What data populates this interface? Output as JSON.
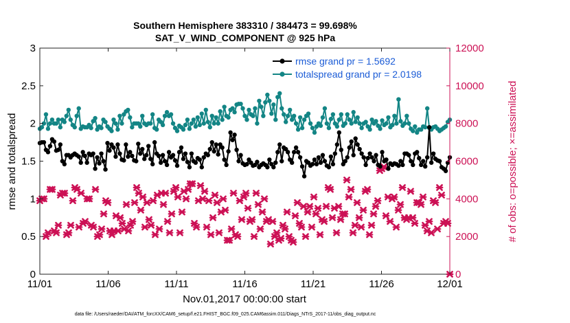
{
  "chart_data": {
    "type": "line",
    "title": "Southern Hemisphere 383310 / 384473 = 99.698%",
    "subtitle": "SAT_V_WIND_COMPONENT @ 925 hPa",
    "xlabel": "Nov.01,2017 00:00:00 start",
    "ylabel_left": "rmse and totalspread",
    "ylabel_right": "# of obs: o=possible; ×=assimilated",
    "xlim": [
      0,
      30
    ],
    "ylim_left": [
      0,
      3
    ],
    "ylim_right": [
      0,
      12000
    ],
    "x_tick_labels": [
      "11/01",
      "11/06",
      "11/11",
      "11/16",
      "11/21",
      "11/26",
      "12/01"
    ],
    "x_tick_values": [
      0,
      5,
      10,
      15,
      20,
      25,
      30
    ],
    "y_left_ticks": [
      0,
      0.5,
      1,
      1.5,
      2,
      2.5,
      3
    ],
    "y_left_tick_labels": [
      "0",
      "0.5",
      "1",
      "1.5",
      "2",
      "2.5",
      "3"
    ],
    "y_right_ticks": [
      0,
      2000,
      4000,
      6000,
      8000,
      10000,
      12000
    ],
    "y_right_tick_labels": [
      "0",
      "2000",
      "4000",
      "6000",
      "8000",
      "10000",
      "12000"
    ],
    "legend": [
      {
        "label": "rmse grand pr = 1.5692",
        "color": "#000000"
      },
      {
        "label": "totalspread grand pr = 2.0198",
        "color": "#138585"
      }
    ],
    "footnote": "data file: /Users/raeder/DAI/ATM_forcXX/CAM6_setup/f.e21.FHIST_BGC.f09_025.CAM6assim.011/Diags_NTrS_2017-11/obs_diag_output.nc",
    "series": [
      {
        "name": "rmse",
        "color": "#000000",
        "axis": "left",
        "values": [
          1.74,
          1.75,
          1.75,
          1.65,
          1.62,
          1.7,
          1.79,
          1.76,
          1.64,
          1.65,
          1.72,
          1.5,
          1.46,
          1.58,
          1.58,
          1.55,
          1.58,
          1.6,
          1.58,
          1.56,
          1.48,
          1.62,
          1.57,
          1.48,
          1.6,
          1.58,
          1.6,
          1.4,
          1.55,
          1.47,
          1.6,
          1.5,
          1.39,
          1.74,
          1.64,
          1.72,
          1.68,
          1.56,
          1.72,
          1.6,
          1.52,
          1.51,
          1.72,
          1.56,
          1.62,
          1.57,
          1.51,
          1.5,
          1.73,
          1.6,
          1.66,
          1.53,
          1.58,
          1.7,
          1.53,
          1.46,
          1.75,
          1.6,
          1.57,
          1.48,
          1.58,
          1.5,
          1.45,
          1.62,
          1.55,
          1.58,
          1.51,
          1.44,
          1.62,
          1.68,
          1.53,
          1.6,
          1.49,
          1.42,
          1.6,
          1.5,
          1.48,
          1.54,
          1.52,
          1.42,
          1.55,
          1.6,
          1.58,
          1.66,
          1.75,
          1.63,
          1.72,
          1.59,
          1.72,
          1.68,
          1.52,
          1.45,
          1.63,
          1.88,
          1.78,
          1.85,
          1.65,
          1.5,
          1.58,
          1.47,
          1.45,
          1.46,
          1.52,
          1.48,
          1.44,
          1.45,
          1.49,
          1.42,
          1.45,
          1.47,
          1.45,
          1.42,
          1.52,
          1.46,
          1.42,
          1.48,
          1.62,
          1.72,
          1.5,
          1.68,
          1.66,
          1.62,
          1.52,
          1.48,
          1.62,
          1.68,
          1.62,
          1.55,
          1.43,
          1.3,
          1.5,
          1.48,
          1.44,
          1.46,
          1.52,
          1.46,
          1.55,
          1.48,
          1.58,
          1.5,
          1.44,
          1.42,
          1.56,
          1.46,
          1.6,
          1.72,
          1.88,
          1.65,
          1.46,
          1.5,
          1.55,
          1.68,
          1.76,
          1.58,
          1.8,
          1.72,
          1.66,
          1.6,
          1.55,
          1.45,
          1.54,
          1.6,
          1.55,
          1.5,
          1.58,
          1.45,
          1.43,
          1.62,
          1.5,
          1.52,
          1.4,
          1.47,
          1.45,
          1.47,
          1.46,
          1.44,
          1.5,
          1.45,
          1.6,
          1.6,
          1.58,
          1.5,
          1.45,
          1.6,
          1.62,
          1.54,
          1.45,
          1.5,
          1.43,
          1.55,
          1.95,
          1.48,
          1.6,
          1.53,
          1.51,
          1.5,
          1.42,
          1.4,
          1.37,
          1.48,
          1.55
        ]
      },
      {
        "name": "totalspread",
        "color": "#138585",
        "axis": "left",
        "values": [
          1.93,
          1.95,
          2.0,
          2.12,
          1.93,
          2.0,
          2.05,
          2.0,
          2.0,
          2.05,
          1.95,
          2.05,
          2.02,
          2.1,
          2.18,
          2.05,
          1.98,
          1.95,
          2.1,
          2.2,
          1.93,
          1.96,
          1.95,
          1.95,
          1.98,
          1.94,
          2.03,
          2.07,
          1.92,
          1.96,
          1.94,
          2.05,
          2.02,
          1.96,
          1.93,
          1.9,
          2.05,
          2.0,
          1.92,
          2.1,
          2.0,
          2.12,
          2.16,
          2.18,
          2.08,
          1.95,
          2.0,
          2.0,
          2.0,
          1.96,
          2.1,
          2.0,
          1.98,
          2.0,
          2.0,
          2.12,
          1.94,
          1.92,
          2.05,
          2.02,
          1.98,
          2.1,
          2.15,
          2.1,
          2.12,
          2.0,
          1.94,
          1.9,
          1.97,
          1.95,
          1.92,
          1.98,
          2.05,
          1.93,
          2.0,
          2.05,
          1.96,
          2.08,
          1.98,
          2.13,
          2.0,
          2.18,
          2.02,
          1.95,
          2.1,
          2.0,
          2.08,
          2.0,
          2.16,
          2.05,
          2.22,
          2.1,
          2.08,
          2.18,
          2.2,
          2.15,
          2.25,
          2.26,
          2.26,
          2.2,
          2.1,
          2.05,
          2.18,
          2.12,
          2.1,
          2.2,
          2.0,
          2.3,
          2.22,
          2.1,
          2.28,
          2.38,
          2.3,
          2.13,
          2.25,
          2.05,
          2.35,
          2.4,
          2.2,
          2.12,
          2.02,
          2.1,
          2.18,
          2.05,
          2.1,
          2.0,
          1.92,
          2.08,
          1.94,
          2.05,
          2.1,
          2.13,
          2.0,
          1.94,
          1.88,
          1.96,
          2.0,
          1.97,
          2.08,
          2.2,
          2.0,
          1.94,
          2.06,
          2.12,
          2.0,
          1.96,
          2.05,
          2.12,
          1.97,
          2.0,
          2.12,
          2.05,
          2.0,
          2.15,
          2.02,
          2.08,
          2.0,
          1.94,
          2.0,
          2.02,
          1.96,
          1.92,
          2.05,
          2.0,
          2.03,
          1.97,
          1.93,
          2.04,
          1.98,
          2.0,
          2.08,
          1.95,
          1.98,
          2.1,
          2.0,
          2.32,
          2.03,
          1.97,
          2.0,
          2.1,
          2.0,
          1.93,
          1.9,
          1.96,
          1.88,
          1.92,
          1.92,
          1.96,
          1.95,
          2.2,
          1.94,
          1.92,
          1.95,
          1.96,
          1.93,
          1.9,
          1.92,
          1.94,
          1.96,
          2.02,
          2.05
        ]
      },
      {
        "name": "# obs assimilated",
        "color": "#cc1155",
        "axis": "right",
        "marker": "x",
        "values": [
          3900,
          4000,
          4000,
          2000,
          2200,
          4500,
          4500,
          2300,
          2200,
          2600,
          4200,
          4300,
          4300,
          2100,
          2200,
          2600,
          3900,
          4600,
          4500,
          2500,
          4300,
          2700,
          2800,
          4000,
          4000,
          2600,
          2500,
          4500,
          2000,
          2100,
          2400,
          3200,
          3900,
          3800,
          2300,
          2100,
          2300,
          3100,
          2300,
          3000,
          2700,
          2400,
          3700,
          2300,
          2600,
          2800,
          3800,
          4600,
          4300,
          3400,
          4100,
          2500,
          3800,
          2900,
          2600,
          3900,
          2100,
          4200,
          2400,
          4300,
          3700,
          4300,
          2800,
          2200,
          3200,
          4400,
          4600,
          4100,
          2200,
          3300,
          4400,
          4000,
          4500,
          4800,
          4800,
          2700,
          2500,
          3900,
          4700,
          4000,
          4400,
          2500,
          3900,
          2100,
          3000,
          4200,
          3800,
          2200,
          3300,
          4000,
          3400,
          1800,
          1800,
          2400,
          4300,
          2100,
          2000,
          3900,
          2900,
          4100,
          4300,
          3500,
          2800,
          2900,
          2000,
          4300,
          3700,
          2400,
          3300,
          4000,
          2800,
          2900,
          1600,
          2800,
          2000,
          2200,
          1800,
          1900,
          2600,
          2400,
          3300,
          2000,
          1800,
          1700,
          3100,
          3800,
          2700,
          2500,
          3600,
          2000,
          3300,
          3600,
          2500,
          4100,
          3200,
          3500,
          2100,
          2900,
          2800,
          3600,
          4600,
          4500,
          3000,
          3500,
          2200,
          3600,
          2900,
          3200,
          3200,
          5000,
          4100,
          4500,
          2200,
          2600,
          3800,
          3000,
          2500,
          3400,
          4400,
          4500,
          2100,
          2600,
          3200,
          3600,
          3900,
          5500,
          5600,
          5700,
          3100,
          4100,
          2800,
          4000,
          4100,
          2500,
          3400,
          3700,
          4600,
          3000,
          2900,
          3000,
          4400,
          3000,
          2700,
          3800,
          3800,
          3700,
          4100,
          2600,
          2300,
          2800,
          2200,
          3900,
          3800,
          2400,
          4600,
          4200,
          2700,
          2800,
          2700,
          0
        ]
      }
    ]
  }
}
